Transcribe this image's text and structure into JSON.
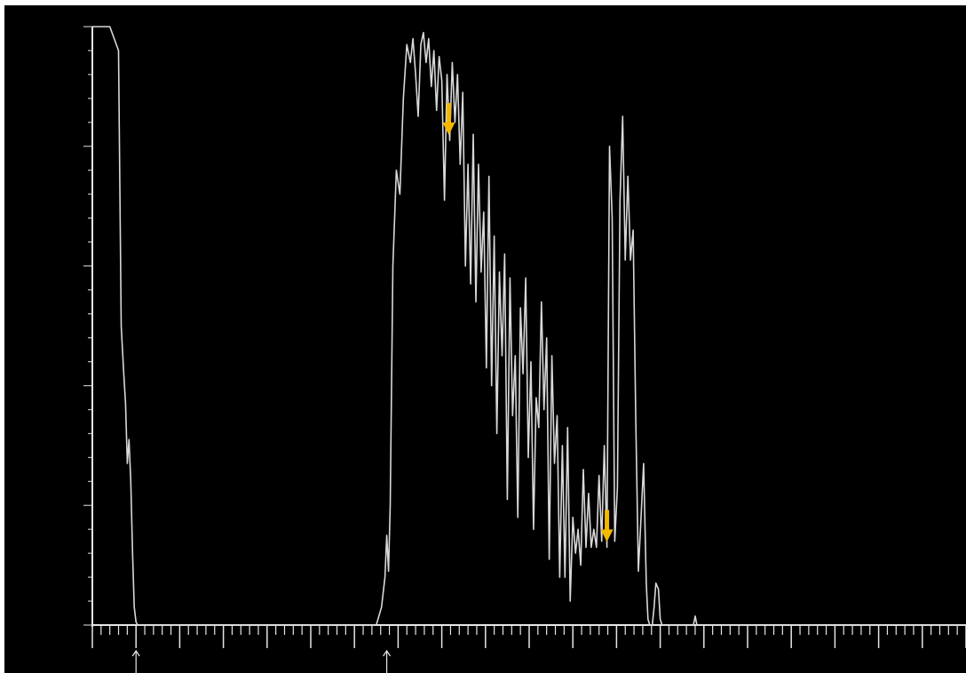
{
  "colors": {
    "background": "#000000",
    "trace": "#d8d8d8",
    "axis": "#e6e6e6",
    "peak_arrow": "#f5b800",
    "marker_arrow": "#e6e6e6"
  },
  "chart_data": {
    "type": "line",
    "title": "",
    "xlabel": "",
    "ylabel": "",
    "xlim": [
      0,
      1000
    ],
    "ylim": [
      0,
      100
    ],
    "grid": false,
    "legend": "none",
    "x_ticks": {
      "major_every": 50,
      "minor_every": 10,
      "labels": []
    },
    "y_ticks": {
      "major_every": 20,
      "minor_every": 4,
      "labels": []
    },
    "series": [
      {
        "values": [
          [
            0,
            100
          ],
          [
            20,
            100
          ],
          [
            25,
            98
          ],
          [
            30,
            96
          ],
          [
            33,
            50
          ],
          [
            36,
            42
          ],
          [
            38,
            37
          ],
          [
            40,
            27
          ],
          [
            42,
            31
          ],
          [
            44,
            24
          ],
          [
            46,
            12
          ],
          [
            48,
            3
          ],
          [
            50,
            0.5
          ],
          [
            52,
            0
          ],
          [
            325,
            0
          ],
          [
            331,
            3
          ],
          [
            335,
            8
          ],
          [
            337,
            15
          ],
          [
            339,
            9
          ],
          [
            341,
            20
          ],
          [
            344,
            60
          ],
          [
            348,
            76
          ],
          [
            352,
            72
          ],
          [
            356,
            88
          ],
          [
            360,
            97
          ],
          [
            364,
            94
          ],
          [
            367,
            98
          ],
          [
            370,
            92
          ],
          [
            373,
            85
          ],
          [
            376,
            97
          ],
          [
            379,
            99
          ],
          [
            382,
            94
          ],
          [
            385,
            98
          ],
          [
            388,
            90
          ],
          [
            391,
            96
          ],
          [
            394,
            86
          ],
          [
            397,
            95
          ],
          [
            400,
            91
          ],
          [
            403,
            71
          ],
          [
            406,
            92
          ],
          [
            409,
            81
          ],
          [
            412,
            94
          ],
          [
            415,
            84
          ],
          [
            418,
            92
          ],
          [
            421,
            77
          ],
          [
            424,
            89
          ],
          [
            427,
            60
          ],
          [
            430,
            77
          ],
          [
            433,
            57
          ],
          [
            436,
            82
          ],
          [
            439,
            54
          ],
          [
            442,
            77
          ],
          [
            445,
            59
          ],
          [
            448,
            69
          ],
          [
            451,
            43
          ],
          [
            454,
            75
          ],
          [
            457,
            40
          ],
          [
            460,
            65
          ],
          [
            463,
            32
          ],
          [
            466,
            59
          ],
          [
            469,
            45
          ],
          [
            472,
            62
          ],
          [
            475,
            21
          ],
          [
            478,
            58
          ],
          [
            481,
            35
          ],
          [
            484,
            45
          ],
          [
            487,
            18
          ],
          [
            490,
            53
          ],
          [
            493,
            42
          ],
          [
            496,
            58
          ],
          [
            499,
            28
          ],
          [
            502,
            44
          ],
          [
            505,
            16
          ],
          [
            508,
            38
          ],
          [
            511,
            33
          ],
          [
            514,
            54
          ],
          [
            517,
            36
          ],
          [
            520,
            48
          ],
          [
            523,
            11
          ],
          [
            526,
            45
          ],
          [
            529,
            27
          ],
          [
            532,
            35
          ],
          [
            535,
            8
          ],
          [
            538,
            30
          ],
          [
            541,
            8
          ],
          [
            544,
            33
          ],
          [
            547,
            4
          ],
          [
            550,
            18
          ],
          [
            553,
            12
          ],
          [
            556,
            16
          ],
          [
            559,
            10
          ],
          [
            562,
            26
          ],
          [
            565,
            13
          ],
          [
            568,
            22
          ],
          [
            571,
            13
          ],
          [
            574,
            16
          ],
          [
            577,
            13
          ],
          [
            580,
            25
          ],
          [
            583,
            14
          ],
          [
            586,
            30
          ],
          [
            589,
            13
          ],
          [
            592,
            80
          ],
          [
            595,
            68
          ],
          [
            598,
            14
          ],
          [
            601,
            23
          ],
          [
            604,
            71
          ],
          [
            607,
            85
          ],
          [
            610,
            61
          ],
          [
            613,
            75
          ],
          [
            616,
            61
          ],
          [
            619,
            66
          ],
          [
            622,
            35
          ],
          [
            625,
            9
          ],
          [
            628,
            18
          ],
          [
            631,
            27
          ],
          [
            634,
            7
          ],
          [
            636,
            1
          ],
          [
            638,
            0
          ],
          [
            641,
            0
          ],
          [
            643,
            3
          ],
          [
            645,
            7
          ],
          [
            648,
            6
          ],
          [
            650,
            1
          ],
          [
            652,
            0
          ],
          [
            688,
            0
          ],
          [
            690,
            1.5
          ],
          [
            692,
            0
          ],
          [
            1000,
            0
          ]
        ]
      }
    ],
    "annotations": [
      {
        "kind": "peak-arrow",
        "x": 408,
        "direction": "down"
      },
      {
        "kind": "peak-arrow",
        "x": 589,
        "direction": "down"
      },
      {
        "kind": "x-marker-arrow",
        "x": 50,
        "direction": "up"
      },
      {
        "kind": "x-marker-arrow",
        "x": 337,
        "direction": "up"
      }
    ]
  }
}
